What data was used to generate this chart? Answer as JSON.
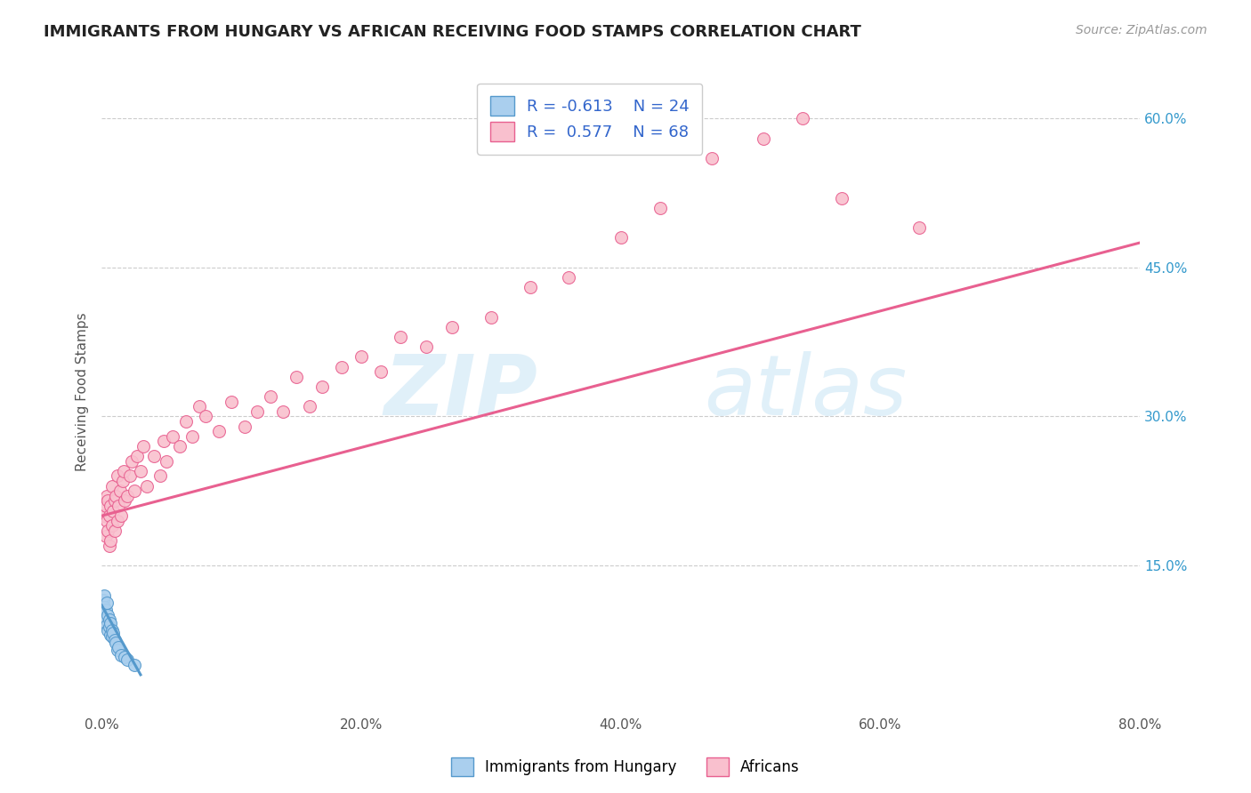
{
  "title": "IMMIGRANTS FROM HUNGARY VS AFRICAN RECEIVING FOOD STAMPS CORRELATION CHART",
  "source": "Source: ZipAtlas.com",
  "ylabel": "Receiving Food Stamps",
  "xlim": [
    0.0,
    0.8
  ],
  "ylim": [
    0.0,
    0.65
  ],
  "xticks": [
    0.0,
    0.2,
    0.4,
    0.6,
    0.8
  ],
  "xticklabels": [
    "0.0%",
    "20.0%",
    "40.0%",
    "60.0%",
    "80.0%"
  ],
  "yticks_right": [
    0.15,
    0.3,
    0.45,
    0.6
  ],
  "yticklabels_right": [
    "15.0%",
    "30.0%",
    "45.0%",
    "60.0%"
  ],
  "color_hungary": "#aacfee",
  "color_african": "#f9c0ce",
  "line_color_hungary": "#5599cc",
  "line_color_african": "#e86090",
  "background_color": "#ffffff",
  "grid_color": "#cccccc",
  "title_color": "#222222",
  "axis_color": "#555555",
  "scatter_hungary_x": [
    0.001,
    0.002,
    0.002,
    0.003,
    0.003,
    0.004,
    0.004,
    0.005,
    0.005,
    0.006,
    0.006,
    0.007,
    0.007,
    0.008,
    0.008,
    0.009,
    0.01,
    0.011,
    0.012,
    0.013,
    0.015,
    0.018,
    0.02,
    0.025
  ],
  "scatter_hungary_y": [
    0.115,
    0.12,
    0.108,
    0.105,
    0.095,
    0.112,
    0.09,
    0.085,
    0.1,
    0.095,
    0.088,
    0.08,
    0.092,
    0.078,
    0.085,
    0.082,
    0.075,
    0.072,
    0.065,
    0.068,
    0.06,
    0.058,
    0.055,
    0.05
  ],
  "scatter_african_x": [
    0.002,
    0.003,
    0.003,
    0.004,
    0.004,
    0.005,
    0.005,
    0.006,
    0.006,
    0.007,
    0.007,
    0.008,
    0.008,
    0.009,
    0.01,
    0.01,
    0.011,
    0.012,
    0.012,
    0.013,
    0.014,
    0.015,
    0.016,
    0.017,
    0.018,
    0.02,
    0.022,
    0.023,
    0.025,
    0.027,
    0.03,
    0.032,
    0.035,
    0.04,
    0.045,
    0.048,
    0.05,
    0.055,
    0.06,
    0.065,
    0.07,
    0.075,
    0.08,
    0.09,
    0.1,
    0.11,
    0.12,
    0.13,
    0.14,
    0.15,
    0.16,
    0.17,
    0.185,
    0.2,
    0.215,
    0.23,
    0.25,
    0.27,
    0.3,
    0.33,
    0.36,
    0.4,
    0.43,
    0.47,
    0.51,
    0.54,
    0.57,
    0.63
  ],
  "scatter_african_y": [
    0.2,
    0.18,
    0.21,
    0.195,
    0.22,
    0.185,
    0.215,
    0.17,
    0.2,
    0.175,
    0.21,
    0.19,
    0.23,
    0.205,
    0.185,
    0.215,
    0.22,
    0.195,
    0.24,
    0.21,
    0.225,
    0.2,
    0.235,
    0.245,
    0.215,
    0.22,
    0.24,
    0.255,
    0.225,
    0.26,
    0.245,
    0.27,
    0.23,
    0.26,
    0.24,
    0.275,
    0.255,
    0.28,
    0.27,
    0.295,
    0.28,
    0.31,
    0.3,
    0.285,
    0.315,
    0.29,
    0.305,
    0.32,
    0.305,
    0.34,
    0.31,
    0.33,
    0.35,
    0.36,
    0.345,
    0.38,
    0.37,
    0.39,
    0.4,
    0.43,
    0.44,
    0.48,
    0.51,
    0.56,
    0.58,
    0.6,
    0.52,
    0.49
  ],
  "trend_african_x_start": 0.0,
  "trend_african_x_end": 0.8,
  "trend_african_y_start": 0.2,
  "trend_african_y_end": 0.475,
  "trend_hungary_x_start": 0.0,
  "trend_hungary_x_end": 0.03,
  "trend_hungary_y_start": 0.11,
  "trend_hungary_y_end": 0.04
}
